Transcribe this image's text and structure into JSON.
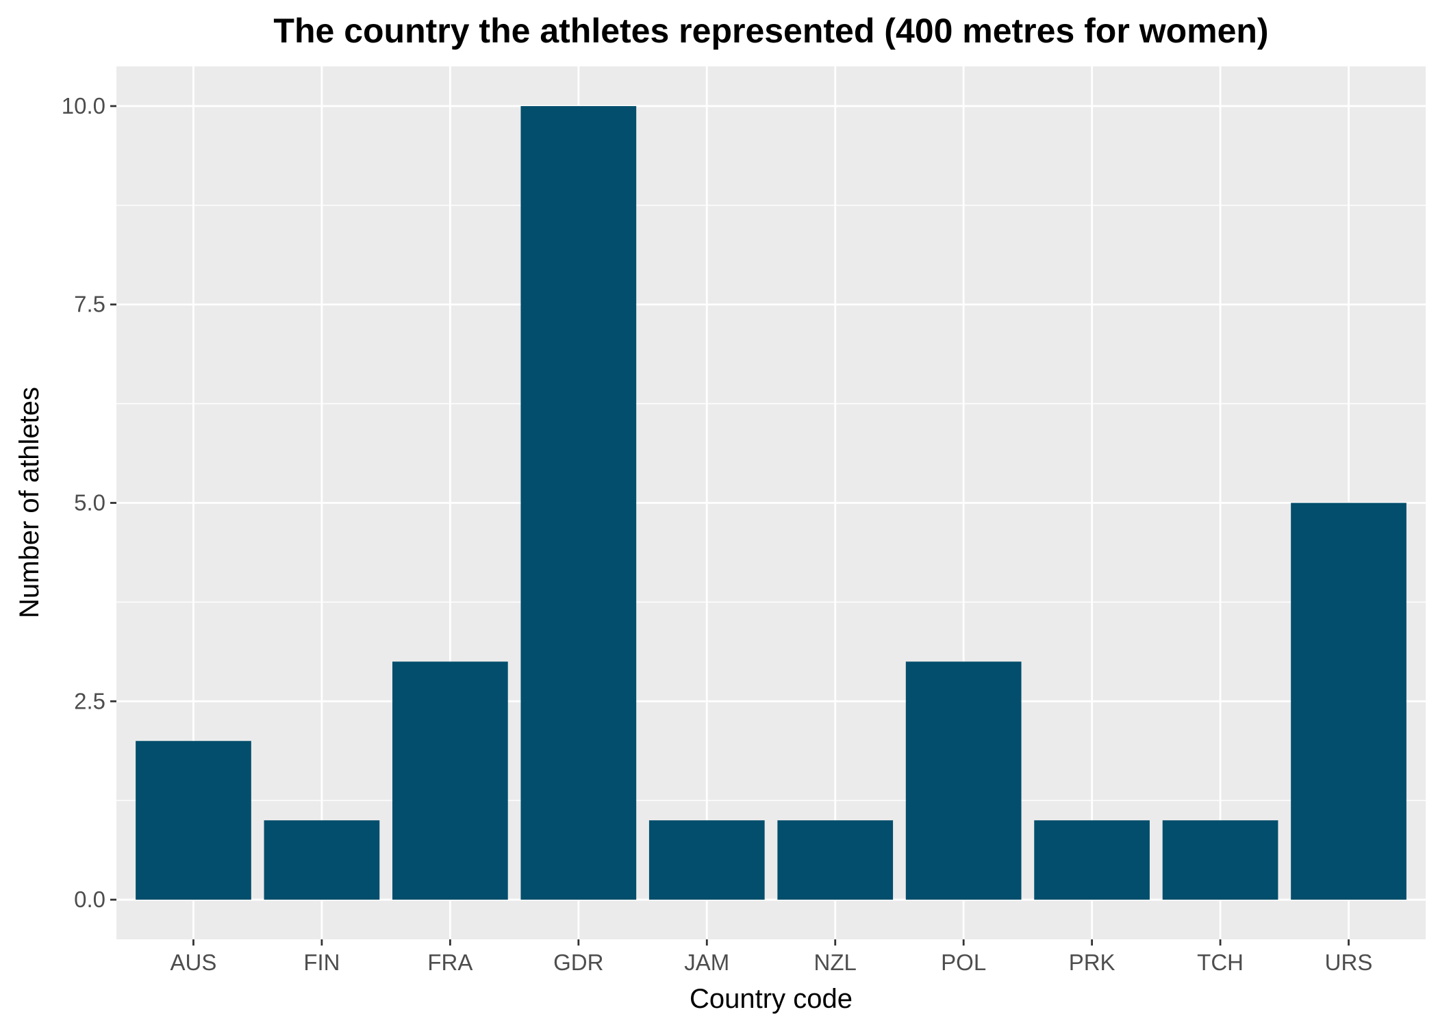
{
  "colors": {
    "panel_background": "#EBEBEB",
    "grid": "#FFFFFF",
    "bar_fill": "#034E6C",
    "tick_label": "#4D4D4D",
    "text": "#000000"
  },
  "chart_data": {
    "type": "bar",
    "title": "The country the athletes represented (400 metres for women)",
    "xlabel": "Country code",
    "ylabel": "Number of athletes",
    "categories": [
      "AUS",
      "FIN",
      "FRA",
      "GDR",
      "JAM",
      "NZL",
      "POL",
      "PRK",
      "TCH",
      "URS"
    ],
    "values": [
      2,
      1,
      3,
      10,
      1,
      1,
      3,
      1,
      1,
      5
    ],
    "ylim": [
      -0.5,
      10.5
    ],
    "yticks": [
      0,
      2.5,
      5,
      7.5,
      10
    ],
    "ytick_labels": [
      "0.0",
      "2.5",
      "5.0",
      "7.5",
      "10.0"
    ],
    "grid": true,
    "legend": "none"
  }
}
